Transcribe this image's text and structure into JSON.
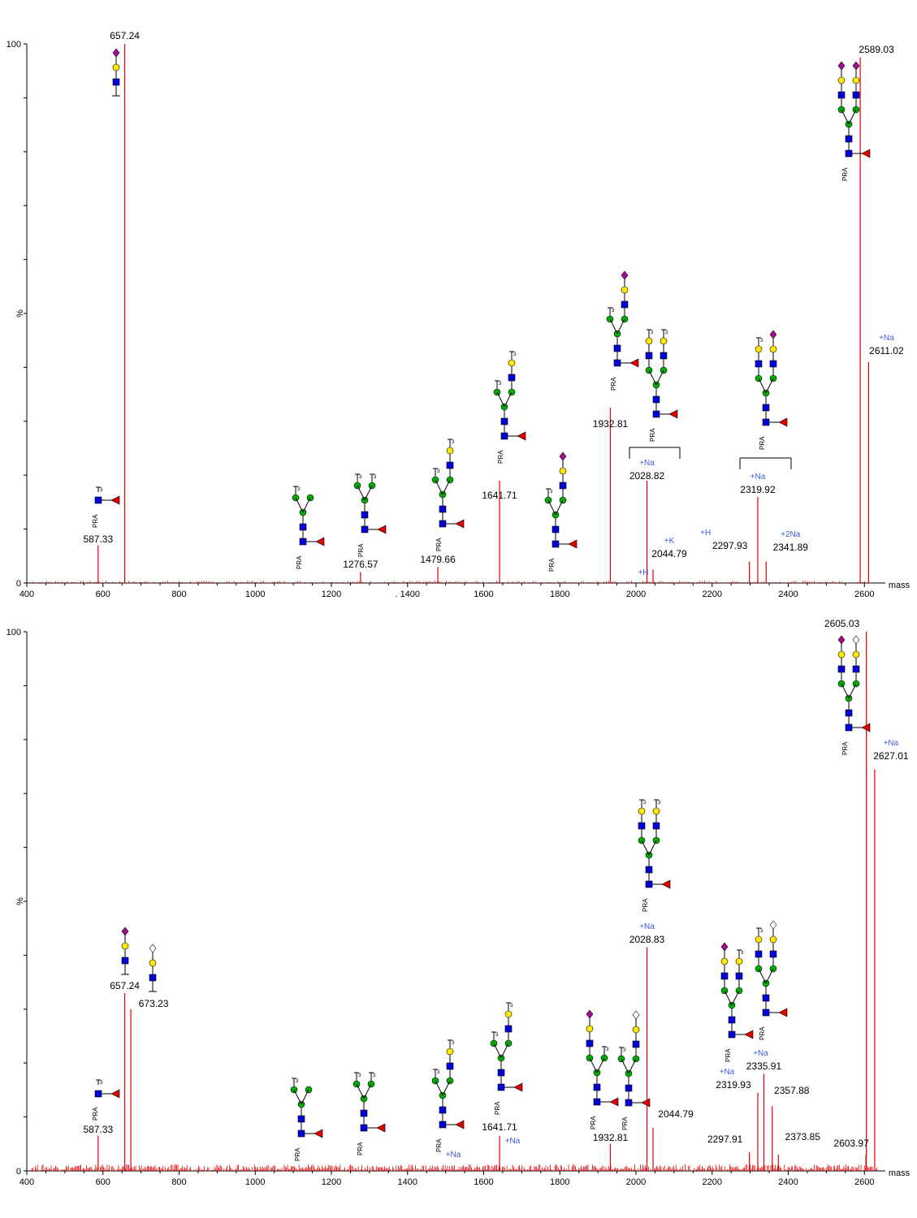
{
  "chart_data": [
    {
      "type": "bar",
      "xlabel": "mass",
      "ylabel": "%",
      "xlim": [
        400,
        2640
      ],
      "ylim": [
        0,
        100
      ],
      "x_ticks": [
        "400",
        "600",
        "800",
        "1000",
        "1200",
        ". 1400",
        "1600",
        "1800",
        "2000",
        "2200",
        "2400",
        "2600"
      ],
      "y_ticks": [
        "0",
        "100"
      ],
      "peaks": [
        {
          "x": 587.33,
          "y": 7,
          "label": "587.33"
        },
        {
          "x": 657.24,
          "y": 100,
          "label": "657.24"
        },
        {
          "x": 1276.57,
          "y": 2,
          "label": "1276.57"
        },
        {
          "x": 1479.66,
          "y": 3,
          "label": "1479.66"
        },
        {
          "x": 1641.71,
          "y": 19,
          "label": "1641.71"
        },
        {
          "x": 1932.81,
          "y": 32.5,
          "label": "1932.81"
        },
        {
          "x": 2028.82,
          "y": 19,
          "label": "2028.82",
          "adduct": "+Na"
        },
        {
          "x": 2044.79,
          "y": 2.5,
          "label": "2044.79",
          "adduct": "+K"
        },
        {
          "x": 2297.93,
          "y": 4,
          "label": "2297.93",
          "adduct": "+H"
        },
        {
          "x": 2319.92,
          "y": 16,
          "label": "2319.92",
          "adduct": "+Na"
        },
        {
          "x": 2341.89,
          "y": 4,
          "label": "2341.89",
          "adduct": "+2Na"
        },
        {
          "x": 2589.03,
          "y": 97.5,
          "label": "2589.03"
        },
        {
          "x": 2611.02,
          "y": 41,
          "label": "2611.02",
          "adduct": "+Na"
        }
      ],
      "annotations": [
        "+H",
        "PRA"
      ]
    },
    {
      "type": "bar",
      "xlabel": "mass",
      "ylabel": "%",
      "xlim": [
        400,
        2640
      ],
      "ylim": [
        0,
        100
      ],
      "x_ticks": [
        "400",
        "600",
        "800",
        "1000",
        "1200",
        "1400",
        "1600",
        "1800",
        "2000",
        "2200",
        "2400",
        "2600"
      ],
      "y_ticks": [
        "0",
        "100"
      ],
      "peaks": [
        {
          "x": 587.33,
          "y": 6.5,
          "label": "587.33"
        },
        {
          "x": 657.24,
          "y": 33,
          "label": "657.24"
        },
        {
          "x": 673.23,
          "y": 30,
          "label": "673.23"
        },
        {
          "x": 1641.71,
          "y": 6.5,
          "label": "1641.71"
        },
        {
          "x": 1932.81,
          "y": 5,
          "label": "1932.81"
        },
        {
          "x": 2028.83,
          "y": 41.5,
          "label": "2028.83",
          "adduct": "+Na"
        },
        {
          "x": 2044.79,
          "y": 8,
          "label": "2044.79"
        },
        {
          "x": 2297.91,
          "y": 3.5,
          "label": "2297.91"
        },
        {
          "x": 2319.93,
          "y": 14.5,
          "label": "2319.93",
          "adduct": "+Na"
        },
        {
          "x": 2335.91,
          "y": 18,
          "label": "2335.91",
          "adduct": "+Na"
        },
        {
          "x": 2357.88,
          "y": 12,
          "label": "2357.88"
        },
        {
          "x": 2373.85,
          "y": 3,
          "label": "2373.85"
        },
        {
          "x": 2603.97,
          "y": 3,
          "label": "2603.97"
        },
        {
          "x": 2605.03,
          "y": 100,
          "label": "2605.03"
        },
        {
          "x": 2627.01,
          "y": 74.5,
          "label": "2627.01",
          "adduct": "+Na"
        }
      ],
      "annotations": [
        "+Na",
        "PRA"
      ]
    }
  ]
}
